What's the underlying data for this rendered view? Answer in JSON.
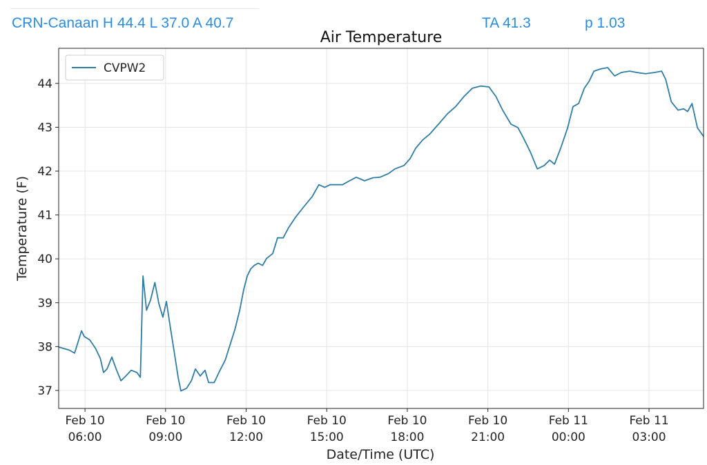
{
  "header": {
    "station_summary": "CRN-Canaan H 44.4 L 37.0 A 40.7",
    "ta": "TA 41.3",
    "p": "p 1.03"
  },
  "colors": {
    "header_text": "#2b8be0",
    "series": "#2f7ca3",
    "grid": "#e5e5e5"
  },
  "chart_data": {
    "type": "line",
    "title": "Air Temperature",
    "xlabel": "Date/Time (UTC)",
    "ylabel": "Temperature (F)",
    "x_units": "hours since Feb 10 00:00 UTC",
    "xlim": [
      5.02,
      29.03
    ],
    "ylim": [
      36.59,
      44.8
    ],
    "grid": true,
    "legend_position": "top-left",
    "xticks": [
      {
        "value": 6,
        "line1": "Feb 10",
        "line2": "06:00"
      },
      {
        "value": 9,
        "line1": "Feb 10",
        "line2": "09:00"
      },
      {
        "value": 12,
        "line1": "Feb 10",
        "line2": "12:00"
      },
      {
        "value": 15,
        "line1": "Feb 10",
        "line2": "15:00"
      },
      {
        "value": 18,
        "line1": "Feb 10",
        "line2": "18:00"
      },
      {
        "value": 21,
        "line1": "Feb 10",
        "line2": "21:00"
      },
      {
        "value": 24,
        "line1": "Feb 11",
        "line2": "00:00"
      },
      {
        "value": 27,
        "line1": "Feb 11",
        "line2": "03:00"
      }
    ],
    "yticks": [
      "37",
      "38",
      "39",
      "40",
      "41",
      "42",
      "43",
      "44"
    ],
    "series": [
      {
        "name": "CVPW2",
        "x": [
          5.02,
          5.41,
          5.61,
          5.87,
          5.97,
          6.18,
          6.39,
          6.57,
          6.69,
          6.82,
          7.0,
          7.16,
          7.34,
          7.52,
          7.72,
          7.93,
          8.06,
          8.16,
          8.29,
          8.44,
          8.6,
          8.75,
          8.9,
          9.03,
          9.16,
          9.32,
          9.47,
          9.57,
          9.78,
          9.96,
          10.11,
          10.29,
          10.47,
          10.6,
          10.81,
          11.01,
          11.22,
          11.4,
          11.58,
          11.76,
          11.91,
          12.04,
          12.17,
          12.3,
          12.45,
          12.61,
          12.76,
          12.99,
          13.17,
          13.38,
          13.58,
          13.84,
          14.15,
          14.46,
          14.71,
          14.92,
          15.13,
          15.38,
          15.59,
          15.85,
          16.1,
          16.41,
          16.72,
          16.98,
          17.29,
          17.54,
          17.88,
          18.11,
          18.31,
          18.57,
          18.83,
          19.16,
          19.5,
          19.8,
          20.11,
          20.42,
          20.73,
          21.04,
          21.3,
          21.55,
          21.86,
          22.12,
          22.32,
          22.58,
          22.84,
          23.1,
          23.3,
          23.48,
          23.71,
          23.97,
          24.17,
          24.38,
          24.59,
          24.77,
          24.95,
          25.2,
          25.46,
          25.72,
          25.97,
          26.28,
          26.54,
          26.87,
          27.21,
          27.47,
          27.62,
          27.83,
          28.08,
          28.29,
          28.44,
          28.6,
          28.8,
          29.03
        ],
        "y": [
          37.99,
          37.92,
          37.85,
          38.36,
          38.23,
          38.15,
          37.96,
          37.73,
          37.41,
          37.49,
          37.76,
          37.49,
          37.22,
          37.33,
          37.46,
          37.41,
          37.3,
          39.61,
          38.83,
          39.06,
          39.46,
          38.98,
          38.67,
          39.03,
          38.51,
          37.88,
          37.29,
          36.99,
          37.05,
          37.22,
          37.49,
          37.33,
          37.46,
          37.18,
          37.18,
          37.44,
          37.69,
          38.04,
          38.39,
          38.83,
          39.3,
          39.61,
          39.77,
          39.85,
          39.9,
          39.85,
          40.01,
          40.12,
          40.48,
          40.48,
          40.71,
          40.95,
          41.19,
          41.42,
          41.69,
          41.63,
          41.69,
          41.69,
          41.69,
          41.78,
          41.86,
          41.78,
          41.85,
          41.86,
          41.94,
          42.05,
          42.13,
          42.29,
          42.52,
          42.71,
          42.84,
          43.07,
          43.31,
          43.47,
          43.7,
          43.89,
          43.94,
          43.92,
          43.7,
          43.39,
          43.07,
          42.99,
          42.76,
          42.44,
          42.05,
          42.13,
          42.25,
          42.16,
          42.52,
          42.99,
          43.47,
          43.54,
          43.89,
          44.05,
          44.28,
          44.33,
          44.36,
          44.17,
          44.25,
          44.28,
          44.25,
          44.22,
          44.25,
          44.28,
          44.09,
          43.58,
          43.39,
          43.42,
          43.36,
          43.54,
          42.99,
          42.79
        ]
      }
    ]
  }
}
